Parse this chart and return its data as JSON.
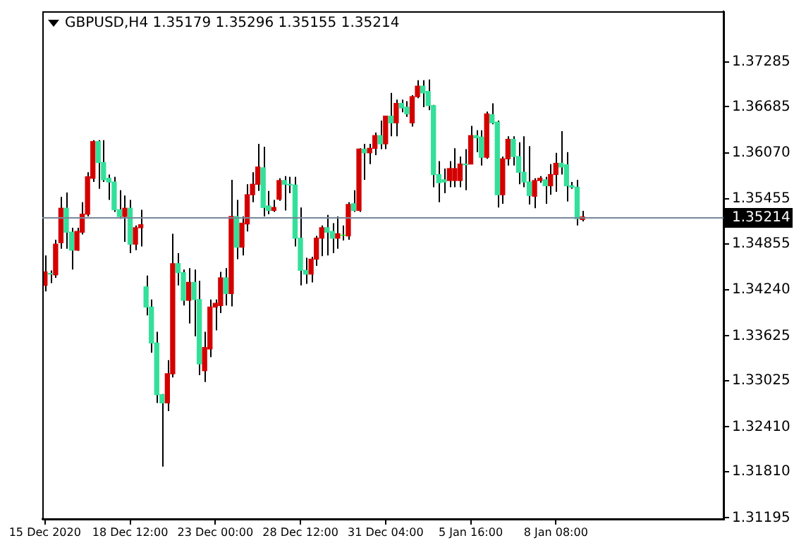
{
  "chart_data": {
    "type": "candlestick",
    "title": "GBPUSD,H4 1.35179 1.35296 1.35155 1.35214",
    "categories": [
      "15 Dec 2020",
      null,
      null,
      null,
      null,
      null,
      null,
      null,
      null,
      null,
      null,
      null,
      null,
      null,
      null,
      null,
      "18 Dec 12:00",
      null,
      null,
      null,
      null,
      null,
      null,
      null,
      null,
      null,
      null,
      null,
      null,
      null,
      null,
      null,
      "23 Dec 00:00",
      null,
      null,
      null,
      null,
      null,
      null,
      null,
      null,
      null,
      null,
      null,
      null,
      null,
      null,
      null,
      "28 Dec 12:00",
      null,
      null,
      null,
      null,
      null,
      null,
      null,
      null,
      null,
      null,
      null,
      null,
      null,
      null,
      null,
      "31 Dec 04:00",
      null,
      null,
      null,
      null,
      null,
      null,
      null,
      null,
      null,
      null,
      null,
      null,
      null,
      null,
      null,
      "5 Jan 16:00",
      null,
      null,
      null,
      null,
      null,
      null,
      null,
      null,
      null,
      null,
      null,
      null,
      null,
      null,
      null,
      "8 Jan 08:00",
      null,
      null,
      null,
      null,
      null,
      null,
      null,
      null,
      null,
      null,
      null,
      null,
      null,
      null,
      null,
      null,
      null,
      null,
      null,
      null,
      null,
      null,
      null,
      null,
      null,
      null,
      null,
      null,
      null,
      null,
      null
    ],
    "ohlc": [
      [
        1.343,
        1.347,
        1.3422,
        1.3448
      ],
      [
        1.3446,
        1.345,
        1.3433,
        1.3445
      ],
      [
        1.3444,
        1.3491,
        1.344,
        1.3485
      ],
      [
        1.3487,
        1.3548,
        1.3479,
        1.3533
      ],
      [
        1.3533,
        1.3554,
        1.3479,
        1.3501
      ],
      [
        1.3501,
        1.3507,
        1.3451,
        1.3477
      ],
      [
        1.3477,
        1.3507,
        1.3476,
        1.3502
      ],
      [
        1.3501,
        1.3541,
        1.3498,
        1.3525
      ],
      [
        1.3525,
        1.3581,
        1.3522,
        1.3575
      ],
      [
        1.3573,
        1.3624,
        1.3568,
        1.3622
      ],
      [
        1.3622,
        1.3624,
        1.3559,
        1.3594
      ],
      [
        1.3594,
        1.3624,
        1.3568,
        1.3571
      ],
      [
        1.3573,
        1.3578,
        1.3544,
        1.3568
      ],
      [
        1.3568,
        1.3575,
        1.3528,
        1.3531
      ],
      [
        1.3531,
        1.3557,
        1.3519,
        1.3522
      ],
      [
        1.3522,
        1.355,
        1.3488,
        1.3533
      ],
      [
        1.3533,
        1.3544,
        1.3473,
        1.3485
      ],
      [
        1.3485,
        1.351,
        1.3477,
        1.3507
      ],
      [
        1.3507,
        1.3531,
        1.3482,
        1.3511
      ],
      [
        1.3428,
        1.3443,
        1.339,
        1.3401
      ],
      [
        1.3401,
        1.3411,
        1.334,
        1.3353
      ],
      [
        1.3353,
        1.3368,
        1.3273,
        1.3284
      ],
      [
        1.3284,
        1.3285,
        1.3188,
        1.3273
      ],
      [
        1.3273,
        1.333,
        1.3262,
        1.3312
      ],
      [
        1.3312,
        1.3499,
        1.3307,
        1.3459
      ],
      [
        1.3459,
        1.3473,
        1.343,
        1.3447
      ],
      [
        1.3447,
        1.3451,
        1.3403,
        1.341
      ],
      [
        1.341,
        1.3453,
        1.3379,
        1.3434
      ],
      [
        1.3434,
        1.3451,
        1.3362,
        1.3411
      ],
      [
        1.3411,
        1.3436,
        1.331,
        1.3325
      ],
      [
        1.3316,
        1.3368,
        1.3301,
        1.3347
      ],
      [
        1.3345,
        1.3411,
        1.3334,
        1.3401
      ],
      [
        1.3401,
        1.3411,
        1.337,
        1.3406
      ],
      [
        1.3403,
        1.3448,
        1.3393,
        1.344
      ],
      [
        1.344,
        1.3453,
        1.3403,
        1.3419
      ],
      [
        1.3419,
        1.3571,
        1.3402,
        1.3522
      ],
      [
        1.3522,
        1.3544,
        1.3465,
        1.3481
      ],
      [
        1.3481,
        1.3522,
        1.347,
        1.3513
      ],
      [
        1.3512,
        1.3565,
        1.3502,
        1.3551
      ],
      [
        1.3551,
        1.3581,
        1.3541,
        1.3565
      ],
      [
        1.3565,
        1.3619,
        1.3556,
        1.3588
      ],
      [
        1.3587,
        1.3615,
        1.3522,
        1.3534
      ],
      [
        1.3536,
        1.3556,
        1.3525,
        1.353
      ],
      [
        1.353,
        1.3544,
        1.3528,
        1.3534
      ],
      [
        1.3545,
        1.3573,
        1.3543,
        1.357
      ],
      [
        1.357,
        1.3576,
        1.353,
        1.3565
      ],
      [
        1.3565,
        1.3575,
        1.3553,
        1.3564
      ],
      [
        1.3564,
        1.3575,
        1.3482,
        1.3493
      ],
      [
        1.3493,
        1.3534,
        1.343,
        1.345
      ],
      [
        1.345,
        1.3467,
        1.3432,
        1.3445
      ],
      [
        1.3445,
        1.3468,
        1.3434,
        1.3465
      ],
      [
        1.3465,
        1.3496,
        1.3456,
        1.3493
      ],
      [
        1.3493,
        1.351,
        1.3469,
        1.3507
      ],
      [
        1.3507,
        1.3524,
        1.347,
        1.3501
      ],
      [
        1.3502,
        1.3513,
        1.3473,
        1.3493
      ],
      [
        1.3493,
        1.3522,
        1.3479,
        1.3499
      ],
      [
        1.3497,
        1.351,
        1.349,
        1.3497
      ],
      [
        1.3496,
        1.3541,
        1.3491,
        1.3538
      ],
      [
        1.3539,
        1.3557,
        1.3528,
        1.353
      ],
      [
        1.353,
        1.3613,
        1.3528,
        1.3612
      ],
      [
        1.3612,
        1.3619,
        1.3571,
        1.3607
      ],
      [
        1.3607,
        1.3619,
        1.3592,
        1.3613
      ],
      [
        1.3613,
        1.3634,
        1.3604,
        1.363
      ],
      [
        1.363,
        1.365,
        1.3612,
        1.3619
      ],
      [
        1.3619,
        1.3656,
        1.3612,
        1.3656
      ],
      [
        1.3656,
        1.3687,
        1.3629,
        1.3647
      ],
      [
        1.3647,
        1.3678,
        1.3629,
        1.3673
      ],
      [
        1.3673,
        1.3678,
        1.3661,
        1.3667
      ],
      [
        1.3668,
        1.3676,
        1.3655,
        1.3659
      ],
      [
        1.3647,
        1.3684,
        1.3642,
        1.3682
      ],
      [
        1.3682,
        1.3704,
        1.368,
        1.3696
      ],
      [
        1.3696,
        1.3704,
        1.3668,
        1.3687
      ],
      [
        1.3689,
        1.3705,
        1.3664,
        1.367
      ],
      [
        1.367,
        1.3671,
        1.3561,
        1.3578
      ],
      [
        1.3578,
        1.3596,
        1.3541,
        1.3567
      ],
      [
        1.3571,
        1.3586,
        1.3553,
        1.3568
      ],
      [
        1.357,
        1.3596,
        1.3561,
        1.3586
      ],
      [
        1.357,
        1.3613,
        1.3561,
        1.3586
      ],
      [
        1.357,
        1.3602,
        1.3561,
        1.3592
      ],
      [
        1.3592,
        1.3612,
        1.3557,
        1.3591
      ],
      [
        1.3592,
        1.3643,
        1.3592,
        1.363
      ],
      [
        1.363,
        1.3637,
        1.3608,
        1.3627
      ],
      [
        1.3628,
        1.3637,
        1.359,
        1.3601
      ],
      [
        1.3601,
        1.3662,
        1.3599,
        1.3659
      ],
      [
        1.3658,
        1.3673,
        1.3645,
        1.3647
      ],
      [
        1.3648,
        1.365,
        1.3534,
        1.3551
      ],
      [
        1.3551,
        1.3602,
        1.3539,
        1.3599
      ],
      [
        1.3599,
        1.3629,
        1.359,
        1.3625
      ],
      [
        1.3625,
        1.3629,
        1.359,
        1.3602
      ],
      [
        1.3602,
        1.3621,
        1.3565,
        1.3581
      ],
      [
        1.3581,
        1.3629,
        1.3561,
        1.3568
      ],
      [
        1.3568,
        1.3616,
        1.3538,
        1.355
      ],
      [
        1.3549,
        1.3573,
        1.3533,
        1.357
      ],
      [
        1.357,
        1.3576,
        1.3567,
        1.3573
      ],
      [
        1.3571,
        1.3575,
        1.3539,
        1.3563
      ],
      [
        1.3563,
        1.3592,
        1.3551,
        1.3578
      ],
      [
        1.3578,
        1.3607,
        1.3555,
        1.3593
      ],
      [
        1.3593,
        1.3636,
        1.3578,
        1.3588
      ],
      [
        1.3591,
        1.3608,
        1.3542,
        1.3563
      ],
      [
        1.3563,
        1.3568,
        1.3559,
        1.3561
      ],
      [
        1.3561,
        1.3571,
        1.351,
        1.3519
      ],
      [
        1.35179,
        1.35296,
        1.35155,
        1.35214
      ],
      null,
      null,
      null,
      null,
      null,
      null,
      null,
      null,
      null,
      null,
      null,
      null,
      null,
      null,
      null,
      null,
      null,
      null,
      null,
      null,
      null,
      null,
      null,
      null,
      null,
      null
    ],
    "colors": [
      "#d40000",
      "#33e09a",
      "#d40000",
      "#d40000",
      "#33e09a",
      "#33e09a",
      "#d40000",
      "#d40000",
      "#d40000",
      "#d40000",
      "#33e09a",
      "#33e09a",
      "#33e09a",
      "#33e09a",
      "#33e09a",
      "#d40000",
      "#33e09a",
      "#d40000",
      "#d40000",
      "#33e09a",
      "#33e09a",
      "#33e09a",
      "#33e09a",
      "#d40000",
      "#d40000",
      "#33e09a",
      "#33e09a",
      "#d40000",
      "#33e09a",
      "#33e09a",
      "#d40000",
      "#d40000",
      "#d40000",
      "#d40000",
      "#33e09a",
      "#d40000",
      "#33e09a",
      "#d40000",
      "#d40000",
      "#d40000",
      "#d40000",
      "#33e09a",
      "#33e09a",
      "#d40000",
      "#d40000",
      "#33e09a",
      "#33e09a",
      "#33e09a",
      "#33e09a",
      "#33e09a",
      "#d40000",
      "#d40000",
      "#d40000",
      "#33e09a",
      "#33e09a",
      "#d40000",
      "#00ff00",
      "#d40000",
      "#33e09a",
      "#d40000",
      "#33e09a",
      "#d40000",
      "#d40000",
      "#33e09a",
      "#d40000",
      "#33e09a",
      "#d40000",
      "#33e09a",
      "#33e09a",
      "#d40000",
      "#d40000",
      "#33e09a",
      "#33e09a",
      "#33e09a",
      "#33e09a",
      "#33e09a",
      "#d40000",
      "#d40000",
      "#d40000",
      "#33e09a",
      "#d40000",
      "#33e09a",
      "#33e09a",
      "#d40000",
      "#33e09a",
      "#33e09a",
      "#d40000",
      "#d40000",
      "#33e09a",
      "#33e09a",
      "#33e09a",
      "#33e09a",
      "#d40000",
      "#d40000",
      "#33e09a",
      "#d40000",
      "#d40000",
      "#33e09a",
      "#33e09a",
      "#33e09a",
      "#33e09a",
      "#d40000",
      null,
      null,
      null,
      null,
      null,
      null,
      null,
      null,
      null,
      null,
      null,
      null,
      null,
      null,
      null,
      null,
      null,
      null,
      null,
      null,
      null,
      null,
      null,
      null,
      null,
      null
    ],
    "ylim": [
      1.3118,
      1.3796
    ],
    "yticks": [
      1.37285,
      1.36685,
      {
        "value": 1.3607,
        "label": "1.36070"
      },
      1.35455,
      1.34855,
      {
        "value": 1.3424,
        "label": "1.34240"
      },
      1.33625,
      1.33025,
      {
        "value": 1.3241,
        "label": "1.32410"
      },
      {
        "value": 1.3181,
        "label": "1.31810"
      },
      1.31195
    ],
    "ref_lines": [
      {
        "axis": "y",
        "value": 1.35214,
        "label": "1.35214",
        "color": "#778899"
      }
    ],
    "grid": false,
    "legend": false
  }
}
